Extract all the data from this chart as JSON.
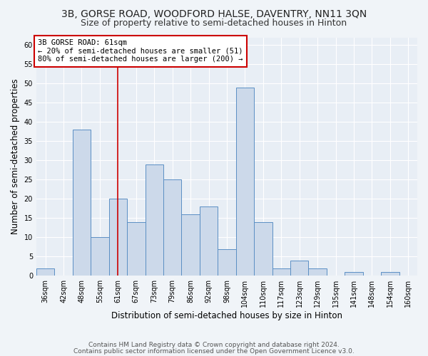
{
  "title": "3B, GORSE ROAD, WOODFORD HALSE, DAVENTRY, NN11 3QN",
  "subtitle": "Size of property relative to semi-detached houses in Hinton",
  "xlabel": "Distribution of semi-detached houses by size in Hinton",
  "ylabel": "Number of semi-detached properties",
  "categories": [
    "36sqm",
    "42sqm",
    "48sqm",
    "55sqm",
    "61sqm",
    "67sqm",
    "73sqm",
    "79sqm",
    "86sqm",
    "92sqm",
    "98sqm",
    "104sqm",
    "110sqm",
    "117sqm",
    "123sqm",
    "129sqm",
    "135sqm",
    "141sqm",
    "148sqm",
    "154sqm",
    "160sqm"
  ],
  "values": [
    2,
    0,
    38,
    10,
    20,
    14,
    29,
    25,
    16,
    18,
    7,
    49,
    14,
    2,
    4,
    2,
    0,
    1,
    0,
    1,
    0
  ],
  "bar_color": "#ccd9ea",
  "bar_edge_color": "#5b8fc4",
  "property_index": 4,
  "vline_color": "#cc0000",
  "annotation_text_line1": "3B GORSE ROAD: 61sqm",
  "annotation_text_line2": "← 20% of semi-detached houses are smaller (51)",
  "annotation_text_line3": "80% of semi-detached houses are larger (200) →",
  "annotation_box_color": "#ffffff",
  "annotation_box_edge_color": "#cc0000",
  "ylim": [
    0,
    62
  ],
  "yticks": [
    0,
    5,
    10,
    15,
    20,
    25,
    30,
    35,
    40,
    45,
    50,
    55,
    60
  ],
  "background_color": "#f0f4f8",
  "plot_bg_color": "#e8eef5",
  "grid_color": "#ffffff",
  "footer_line1": "Contains HM Land Registry data © Crown copyright and database right 2024.",
  "footer_line2": "Contains public sector information licensed under the Open Government Licence v3.0.",
  "title_fontsize": 10,
  "subtitle_fontsize": 9,
  "axis_label_fontsize": 8.5,
  "tick_fontsize": 7
}
